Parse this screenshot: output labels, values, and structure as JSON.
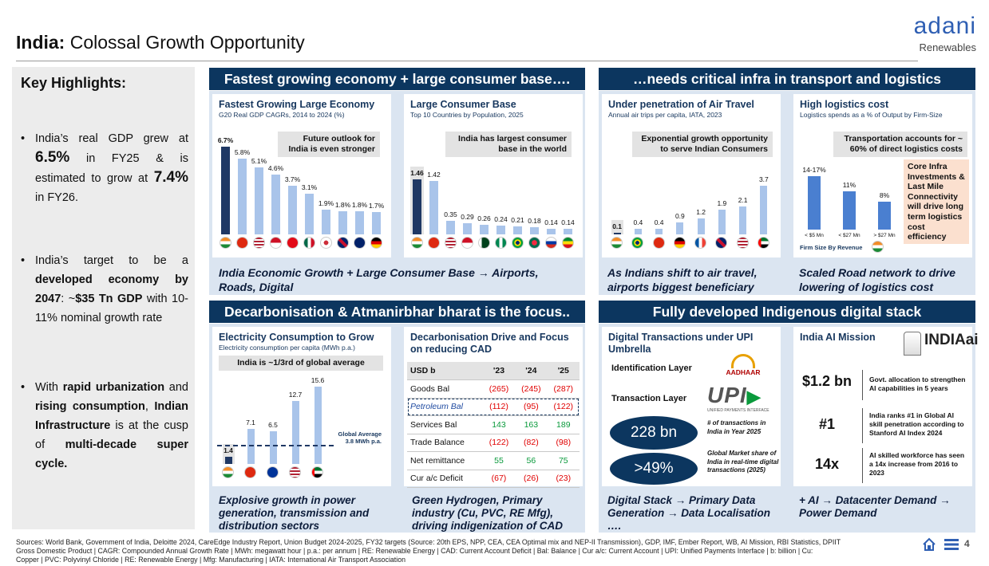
{
  "page": {
    "title_bold": "India:",
    "title_rest": " Colossal Growth Opportunity",
    "logo_word": "adani",
    "logo_sub": "Renewables",
    "page_number": "4"
  },
  "highlights": {
    "heading": "Key Highlights:",
    "b1_pre": "India’s real GDP grew at",
    "b1_v1": "6.5%",
    "b1_mid": "in FY25 & is estimated to grow at",
    "b1_v2": "7.4%",
    "b1_post": "in FY26.",
    "b2_pre": "India’s target to be a",
    "b2_bold": "developed economy by 2047",
    "b2_mid": ": ~",
    "b2_bold2": "$35 Tn GDP",
    "b2_post": " with 10-11% nominal growth rate",
    "b3_pre": "With",
    "b3_b1": "rapid urbanization",
    "b3_and": "and",
    "b3_b2": "rising consumption",
    "b3_b3": "Indian Infrastructure",
    "b3_mid": "is at the cusp of",
    "b3_b4": "multi-decade super cycle."
  },
  "sections": {
    "s1": "Fastest growing economy + large consumer base….",
    "s2": "…needs critical infra in transport and logistics",
    "s3": "Decarbonisation & Atmanirbhar bharat is the focus..",
    "s4": "Fully developed Indigenous digital stack"
  },
  "gdp": {
    "title": "Fastest Growing Large Economy",
    "subtitle": "G20 Real GDP CAGRs, 2014 to 2024 (%)",
    "callout": "Future outlook for India is even stronger"
  },
  "pop": {
    "title": "Large Consumer Base",
    "subtitle": "Top 10 Countries by Population, 2025",
    "callout": "India has largest consumer base in the world"
  },
  "air": {
    "title": "Under penetration of Air Travel",
    "subtitle": "Annual air trips per capita, IATA, 2023",
    "callout": "Exponential growth opportunity to serve Indian Consumers"
  },
  "logi": {
    "title": "High logistics cost",
    "subtitle": "Logistics spends as a % of Output by Firm-Size",
    "callout": "Transportation accounts for ~ 60% of direct logistics costs",
    "core": "Core Infra Investments & Last Mile Connectivity will drive long term logistics cost efficiency",
    "firm_label": "Firm Size By Revenue"
  },
  "foot1": "India Economic Growth + Large Consumer Base → Airports, Roads, Digital",
  "foot2": "As Indians shift to air travel, airports biggest beneficiary",
  "foot3": "Scaled Road network to drive lowering of logistics cost",
  "elec": {
    "title": "Electricity Consumption to Grow",
    "subtitle": "Electricity consumption per capita (MWh p.a.)",
    "callout": "India is ~1/3rd of global average",
    "ga_label": "Global Average",
    "ga_value": "3.8 MWh p.a."
  },
  "cad": {
    "title": "Decarbonisation Drive and Focus on reducing CAD",
    "headers": [
      "USD b",
      "'23",
      "'24",
      "'25"
    ],
    "rows": [
      {
        "label": "Goods Bal",
        "v": [
          "(265)",
          "(245)",
          "(287)"
        ]
      },
      {
        "label": "Petroleum Bal",
        "v": [
          "(112)",
          "(95)",
          "(122)"
        ]
      },
      {
        "label": "Services Bal",
        "v": [
          "143",
          "163",
          "189"
        ]
      },
      {
        "label": "Trade Balance",
        "v": [
          "(122)",
          "(82)",
          "(98)"
        ]
      },
      {
        "label": "Net remittance",
        "v": [
          "55",
          "56",
          "75"
        ]
      },
      {
        "label": "Cur a/c Deficit",
        "v": [
          "(67)",
          "(26)",
          "(23)"
        ]
      }
    ]
  },
  "upi": {
    "title": "Digital Transactions under UPI Umbrella",
    "id_layer": "Identification Layer",
    "tx_layer": "Transaction Layer",
    "aadhaar": "AADHAAR",
    "upi_logo": "UPI",
    "upi_tag": "UNIFIED PAYMENTS INTERFACE",
    "oval1": "228 bn",
    "oval1_text": "# of transactions in India in Year 2025",
    "oval2": ">49%",
    "oval2_text": "Global Market share of India in real-time digital transactions (2025)"
  },
  "ai": {
    "title": "India AI Mission",
    "logo": "INDIAai",
    "r1_big": "$1.2 bn",
    "r1_text": "Govt. allocation to strengthen AI capabilities in 5 years",
    "r2_big": "#1",
    "r2_text": "India ranks #1 in Global AI skill penetration according to Stanford AI Index 2024",
    "r3_big": "14x",
    "r3_text": "AI skilled workforce has seen a 14x increase from 2016 to 2023"
  },
  "foot4": "Explosive growth in power generation, transmission and distribution sectors",
  "foot5": "Green Hydrogen, Primary industry (Cu, PVC, RE Mfg), driving indigenization of CAD",
  "foot6": "Digital Stack → Primary Data Generation → Data Localisation ….",
  "foot7": "+ AI → Datacenter Demand → Power Demand",
  "sources": {
    "line1": "Sources: World Bank, Government of India, Deloitte 2024, CareEdge Industry Report, Union Budget 2024-2025, FY32 targets (Source: 20th EPS, NPP, CEA, CEA Optimal mix and NEP-II Transmission), GDP, IMF, Ember Report, WB, AI Mission, RBI Statistics, DPIIT",
    "line2": "Gross Domestic Product | CAGR: Compounded Annual Growth Rate | MWh: megawatt hour | p.a.: per annum | RE: Renewable Energy | CAD: Current Account Deficit | Bal: Balance | Cur a/c: Current Account | UPI: Unified Payments Interface | b: billion | Cu:",
    "line3": "Copper | PVC: Polyvinyl Chloride | RE: Renewable Energy | Mfg: Manufacturing | IATA: International Air Transport Association"
  },
  "chart_data": [
    {
      "type": "bar",
      "title": "Fastest Growing Large Economy",
      "categories": [
        "India",
        "China",
        "USA",
        "Indonesia",
        "Turkey",
        "Mexico",
        "South Korea",
        "UK",
        "Australia",
        "Germany"
      ],
      "values": [
        6.7,
        5.8,
        5.1,
        4.6,
        3.7,
        3.1,
        1.9,
        1.8,
        1.8,
        1.7
      ],
      "labels": [
        "6.7%",
        "5.8%",
        "5.1%",
        "4.6%",
        "3.7%",
        "3.1%",
        "1.9%",
        "1.8%",
        "1.8%",
        "1.7%"
      ],
      "ylim": [
        0,
        7.2
      ]
    },
    {
      "type": "bar",
      "title": "Large Consumer Base",
      "categories": [
        "India",
        "China",
        "USA",
        "Indonesia",
        "Pakistan",
        "Nigeria",
        "Brazil",
        "Bangladesh",
        "Russia",
        "Ethiopia"
      ],
      "values": [
        1.46,
        1.42,
        0.35,
        0.29,
        0.26,
        0.24,
        0.21,
        0.18,
        0.14,
        0.14
      ],
      "labels": [
        "1.46",
        "1.42",
        "0.35",
        "0.29",
        "0.26",
        "0.24",
        "0.21",
        "0.18",
        "0.14",
        "0.14"
      ],
      "ylim": [
        0,
        1.6
      ]
    },
    {
      "type": "bar",
      "title": "Under penetration of Air Travel",
      "categories": [
        "India",
        "Brazil",
        "China",
        "Germany",
        "France",
        "UK",
        "USA",
        "UAE"
      ],
      "values": [
        0.1,
        0.4,
        0.4,
        0.9,
        1.2,
        1.9,
        2.1,
        3.7
      ],
      "labels": [
        "0.1",
        "0.4",
        "0.4",
        "0.9",
        "1.2",
        "1.9",
        "2.1",
        "3.7"
      ],
      "ylim": [
        0,
        4
      ]
    },
    {
      "type": "bar",
      "title": "High logistics cost",
      "categories": [
        "< $5 Mn",
        "< $27 Mn",
        "> $27 Mn"
      ],
      "values": [
        15.5,
        11,
        8
      ],
      "labels": [
        "14-17%",
        "11%",
        "8%"
      ],
      "ylim": [
        0,
        18
      ]
    },
    {
      "type": "bar",
      "title": "Electricity Consumption to Grow",
      "categories": [
        "India",
        "China",
        "EU",
        "USA",
        "UAE"
      ],
      "values": [
        1.4,
        7.1,
        6.5,
        12.7,
        15.6
      ],
      "labels": [
        "1.4",
        "7.1",
        "6.5",
        "12.7",
        "15.6"
      ],
      "ylim": [
        0,
        16
      ],
      "reference_line": 3.8
    }
  ],
  "colors": {
    "navy": "#0c365f",
    "bar_light": "#a9c4ea",
    "bar_mid": "#4a7fd0",
    "bar_dark": "#1f3864",
    "panel": "#dbe5f1",
    "highlight": "#fbe0cf"
  }
}
